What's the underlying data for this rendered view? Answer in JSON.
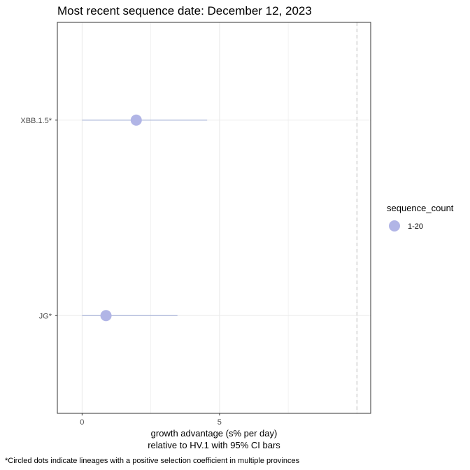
{
  "chart_data": {
    "type": "scatter",
    "title": "Most recent sequence date: December 12, 2023",
    "xlabel": "growth advantage (s% per day)",
    "xlabel_line2": "relative to  HV.1  with 95% CI bars",
    "ylabel": "",
    "x_ticks": [
      0,
      5
    ],
    "x_tick_labels": [
      "0",
      "5"
    ],
    "xlim": [
      -0.9,
      10.5
    ],
    "reference_line_x": 10.0,
    "grid": true,
    "legend": {
      "title": "sequence_count",
      "position": "right",
      "entries": [
        {
          "label": "1-20",
          "color": "#b1b5e6"
        }
      ]
    },
    "colors": {
      "point": "#b1b5e6",
      "ci": "#a8b4d8",
      "reference": "#bfbfbf",
      "grid": "#ebebeb",
      "border": "#333333"
    },
    "categories": [
      "XBB.1.5*",
      "JG*"
    ],
    "series": [
      {
        "points": [
          {
            "lineage": "XBB.1.5*",
            "x": 1.97,
            "ci_low": 0.0,
            "ci_high": 4.55
          },
          {
            "lineage": "JG*",
            "x": 0.87,
            "ci_low": 0.0,
            "ci_high": 3.47
          }
        ]
      }
    ],
    "caption": "*Circled dots indicate lineages with a positive selection coefficient in multiple provinces"
  }
}
